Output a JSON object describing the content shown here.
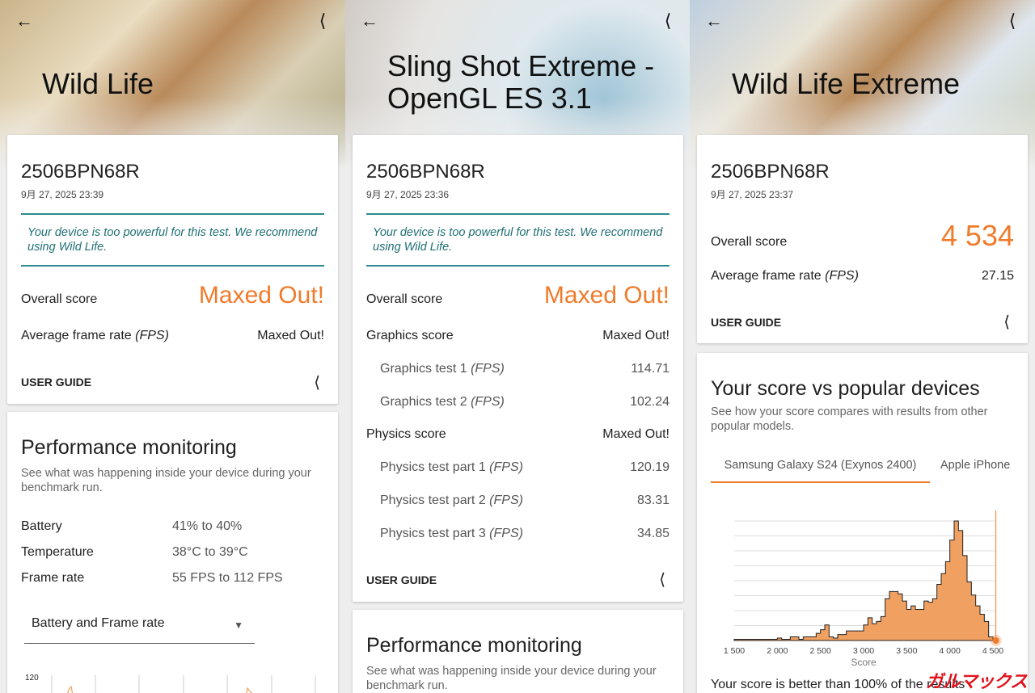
{
  "panels": [
    {
      "title": "Wild Life",
      "device": "2506BPN68R",
      "date": "9月 27, 2025 23:39",
      "notice": "Your device is too powerful for this test. We recommend using Wild Life.",
      "overall_label": "Overall score",
      "overall_value": "Maxed Out!",
      "fps_label": "Average frame rate",
      "fps_unit": "(FPS)",
      "fps_value": "Maxed Out!",
      "user_guide": "USER GUIDE",
      "perf": {
        "title": "Performance monitoring",
        "desc": "See what was happening inside your device during your benchmark run.",
        "rows": [
          {
            "label": "Battery",
            "value": "41% to 40%"
          },
          {
            "label": "Temperature",
            "value": "38°C to 39°C"
          },
          {
            "label": "Frame rate",
            "value": "55 FPS to 112 FPS"
          }
        ],
        "dropdown": "Battery and Frame rate",
        "chart_top_tick": "120"
      }
    },
    {
      "title_line1": "Sling Shot Extreme -",
      "title_line2": "OpenGL ES 3.1",
      "device": "2506BPN68R",
      "date": "9月 27, 2025 23:36",
      "notice": "Your device is too powerful for this test. We recommend using Wild Life.",
      "overall_label": "Overall score",
      "overall_value": "Maxed Out!",
      "graphics_label": "Graphics score",
      "graphics_value": "Maxed Out!",
      "graphics_tests": [
        {
          "label": "Graphics test 1",
          "unit": "(FPS)",
          "value": "114.71"
        },
        {
          "label": "Graphics test 2",
          "unit": "(FPS)",
          "value": "102.24"
        }
      ],
      "physics_label": "Physics score",
      "physics_value": "Maxed Out!",
      "physics_tests": [
        {
          "label": "Physics test part 1",
          "unit": "(FPS)",
          "value": "120.19"
        },
        {
          "label": "Physics test part 2",
          "unit": "(FPS)",
          "value": "83.31"
        },
        {
          "label": "Physics test part 3",
          "unit": "(FPS)",
          "value": "34.85"
        }
      ],
      "user_guide": "USER GUIDE",
      "perf": {
        "title": "Performance monitoring",
        "desc": "See what was happening inside your device during your benchmark run."
      }
    },
    {
      "title": "Wild Life Extreme",
      "device": "2506BPN68R",
      "date": "9月 27, 2025 23:37",
      "overall_label": "Overall score",
      "overall_value": "4 534",
      "fps_label": "Average frame rate",
      "fps_unit": "(FPS)",
      "fps_value": "27.15",
      "user_guide": "USER GUIDE",
      "compare": {
        "title": "Your score vs popular devices",
        "desc": "See how your score compares with results from other popular models.",
        "tabs": [
          "Samsung Galaxy S24 (Exynos 2400)",
          "Apple iPhone"
        ],
        "active_tab": 0,
        "result": "Your score is better than 100% of the results"
      }
    }
  ],
  "watermark": "ガルマックス",
  "colors": {
    "accent": "#f07b2b",
    "notice": "#2c8a8e"
  },
  "chart_data": {
    "type": "area",
    "xlabel": "Score",
    "ylabel": "",
    "xlim": [
      1500,
      4500
    ],
    "x_ticks": [
      "1 500",
      "2 000",
      "2 500",
      "3 000",
      "3 500",
      "4 000",
      "4 500"
    ],
    "x_tick_values": [
      1500,
      2000,
      2500,
      3000,
      3500,
      4000,
      4500
    ],
    "bin_width": 50,
    "x": [
      1500,
      1550,
      1600,
      1650,
      1700,
      1750,
      1800,
      1850,
      1900,
      1950,
      2000,
      2050,
      2100,
      2150,
      2200,
      2250,
      2300,
      2350,
      2400,
      2450,
      2500,
      2550,
      2600,
      2650,
      2700,
      2750,
      2800,
      2850,
      2900,
      2950,
      3000,
      3050,
      3100,
      3150,
      3200,
      3250,
      3300,
      3350,
      3400,
      3450,
      3500,
      3550,
      3600,
      3650,
      3700,
      3750,
      3800,
      3850,
      3900,
      3950,
      4000,
      4050,
      4100,
      4150,
      4200,
      4250,
      4300,
      4350,
      4400,
      4450
    ],
    "values": [
      1,
      1,
      1,
      1,
      1,
      1,
      1,
      1,
      1,
      1,
      2,
      1,
      1,
      3,
      3,
      1,
      3,
      3,
      3,
      6,
      9,
      13,
      3,
      2,
      5,
      5,
      8,
      8,
      8,
      8,
      13,
      19,
      14,
      16,
      20,
      35,
      41,
      41,
      39,
      33,
      26,
      29,
      26,
      26,
      33,
      32,
      35,
      47,
      56,
      66,
      84,
      100,
      92,
      71,
      49,
      38,
      29,
      22,
      16,
      3
    ],
    "marker": {
      "label": "Your score",
      "x": 4534
    },
    "grid": true
  }
}
